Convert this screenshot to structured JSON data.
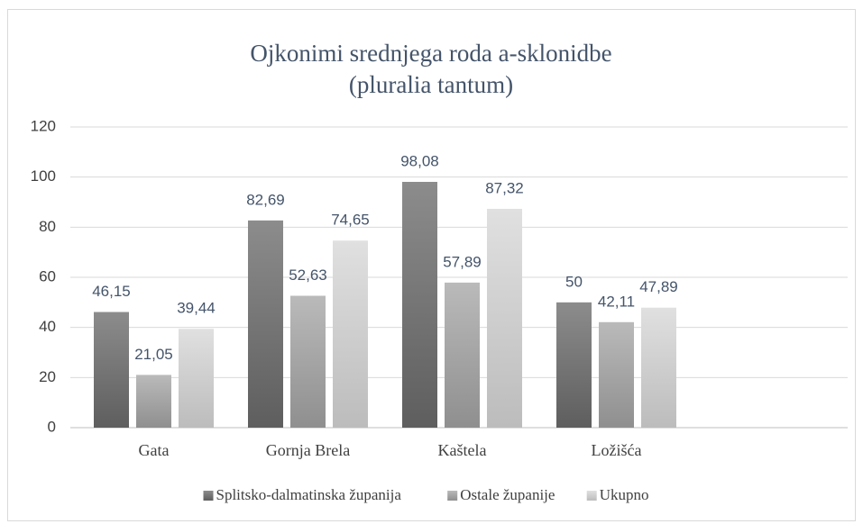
{
  "chart_data": {
    "type": "bar",
    "title": "Ojkonimi srednjega roda a-sklonidbe",
    "subtitle": "(pluralia tantum)",
    "categories": [
      "Gata",
      "Gornja Brela",
      "Kaštela",
      "Ložišća"
    ],
    "series": [
      {
        "name": "Splitsko-dalmatinska županija",
        "color": [
          "#5e5e5e",
          "#8c8c8c"
        ],
        "values": [
          46.15,
          82.69,
          98.08,
          50
        ],
        "value_labels": [
          "46,15",
          "82,69",
          "98,08",
          "50"
        ]
      },
      {
        "name": "Ostale županije",
        "color": [
          "#8f8f8f",
          "#bababa"
        ],
        "values": [
          21.05,
          52.63,
          57.89,
          42.11
        ],
        "value_labels": [
          "21,05",
          "52,63",
          "57,89",
          "42,11"
        ]
      },
      {
        "name": "Ukupno",
        "color": [
          "#bcbcbc",
          "#e0e0e0"
        ],
        "values": [
          39.44,
          74.65,
          87.32,
          47.89
        ],
        "value_labels": [
          "39,44",
          "74,65",
          "87,32",
          "47,89"
        ]
      }
    ],
    "ylim": [
      0,
      120
    ],
    "yticks": [
      0,
      20,
      40,
      60,
      80,
      100,
      120
    ],
    "grid": true,
    "legend": "bottom"
  }
}
